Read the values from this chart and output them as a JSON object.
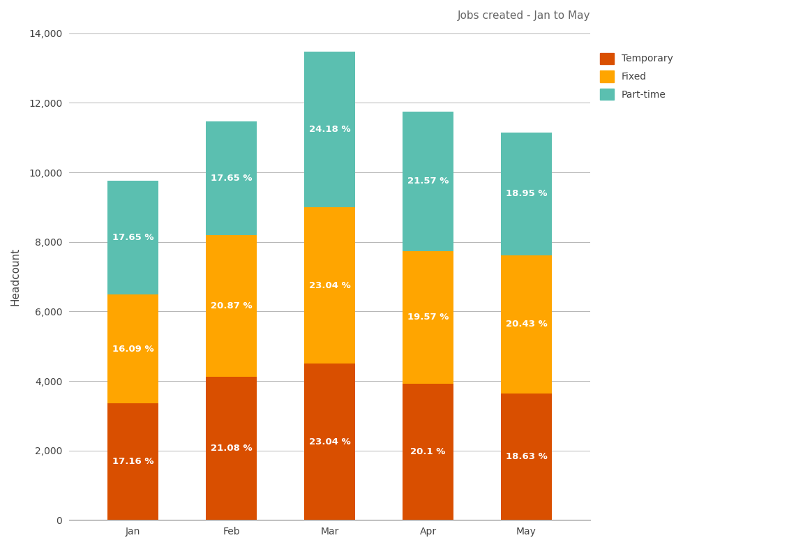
{
  "title": "Jobs created - Jan to May",
  "categories": [
    "Jan",
    "Feb",
    "Mar",
    "Apr",
    "May"
  ],
  "series": {
    "Temporary": {
      "values": [
        3350,
        4115,
        4497,
        3923,
        3635
      ],
      "color": "#d94f00",
      "percentages": [
        "17.16 %",
        "21.08 %",
        "23.04 %",
        "20.1 %",
        "18.63 %"
      ]
    },
    "Fixed": {
      "values": [
        3140,
        4075,
        4497,
        3820,
        3988
      ],
      "color": "#ffa500",
      "percentages": [
        "16.09 %",
        "20.87 %",
        "23.04 %",
        "19.57 %",
        "20.43 %"
      ]
    },
    "Part-time": {
      "values": [
        3275,
        3275,
        4485,
        4001,
        3514
      ],
      "color": "#5bbfb0",
      "percentages": [
        "17.65 %",
        "17.65 %",
        "24.18 %",
        "21.57 %",
        "18.95 %"
      ]
    }
  },
  "ylabel": "Headcount",
  "ylim": [
    0,
    14000
  ],
  "yticks": [
    0,
    2000,
    4000,
    6000,
    8000,
    10000,
    12000,
    14000
  ],
  "bar_width": 0.52,
  "background_color": "#ffffff",
  "grid_color": "#aaaaaa",
  "title_color": "#666666",
  "title_fontsize": 11,
  "ylabel_fontsize": 11,
  "tick_fontsize": 10,
  "legend_fontsize": 10,
  "annotation_fontsize": 9.5,
  "annotation_color": "#ffffff"
}
